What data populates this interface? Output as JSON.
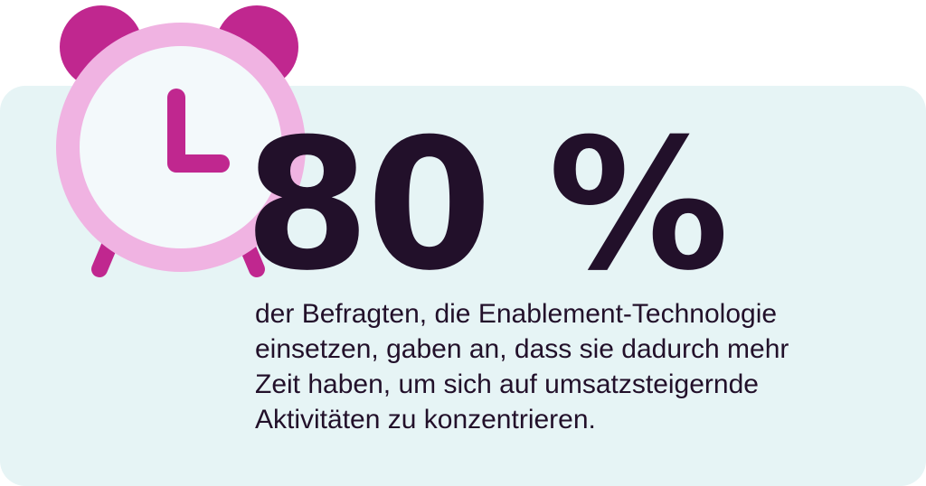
{
  "colors": {
    "panel_background": "#e6f4f5",
    "bell_magenta": "#c0278f",
    "clock_ring_pink": "#f0b3e2",
    "clock_face": "#f3f9fb",
    "clock_hands": "#c0278f",
    "text_dark": "#22102a"
  },
  "clock": {
    "icon": "alarm-clock-icon"
  },
  "headline": {
    "value": "80 %"
  },
  "description": {
    "lines": [
      "der Befragten, die Enablement-Technologie",
      "einsetzen, gaben an, dass sie dadurch mehr",
      "Zeit haben, um sich auf umsatzsteigernde",
      "Aktivitäten zu konzentrieren."
    ]
  }
}
